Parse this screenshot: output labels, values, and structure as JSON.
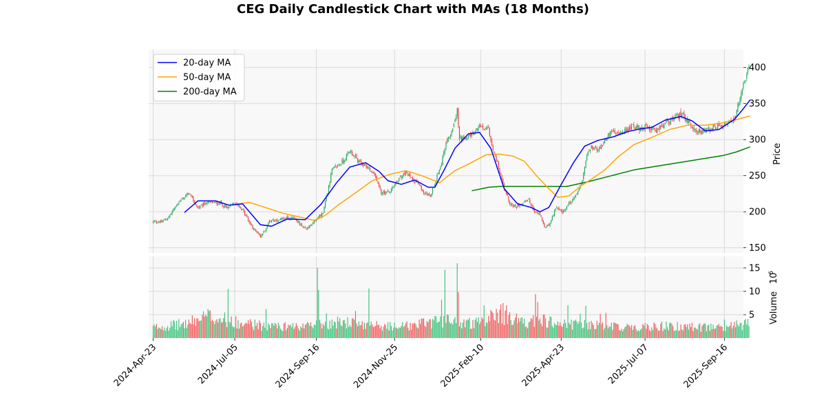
{
  "chart_data": {
    "type": "candlestick",
    "title": "CEG Daily Candlestick Chart with MAs (18 Months)",
    "price_panel": {
      "ylabel": "Price",
      "ylim": [
        143,
        425
      ],
      "yticks": [
        150,
        200,
        250,
        300,
        350,
        400
      ],
      "ytick_labels": [
        "150",
        "200",
        "250",
        "300",
        "350",
        "400"
      ],
      "grid": true
    },
    "volume_panel": {
      "ylabel": "Volume",
      "exponent_label": "6",
      "ylim": [
        0,
        17.5
      ],
      "yticks": [
        5,
        10,
        15
      ],
      "ytick_labels": [
        "5",
        "10",
        "15"
      ],
      "grid": true
    },
    "xaxis": {
      "range_days": [
        -4,
        528
      ],
      "ticks": [
        {
          "day": 0,
          "label": "2024-Apr-23"
        },
        {
          "day": 73,
          "label": "2024-Jul-05"
        },
        {
          "day": 146,
          "label": "2024-Sep-16"
        },
        {
          "day": 216,
          "label": "2024-Nov-25"
        },
        {
          "day": 293,
          "label": "2025-Feb-10"
        },
        {
          "day": 365,
          "label": "2025-Apr-23"
        },
        {
          "day": 440,
          "label": "2025-Jul-07"
        },
        {
          "day": 511,
          "label": "2025-Sep-16"
        }
      ]
    },
    "legend": {
      "position": "top-left",
      "entries": [
        {
          "label": "20-day MA",
          "color": "#0000ff"
        },
        {
          "label": "50-day MA",
          "color": "#ffa500"
        },
        {
          "label": "200-day MA",
          "color": "#008000"
        }
      ]
    },
    "colors": {
      "up": "#26a65b",
      "down": "#e8413e",
      "up_volume": "#3cc37a",
      "down_volume": "#f25c5c"
    },
    "price_path": [
      [
        0,
        186
      ],
      [
        8,
        186
      ],
      [
        14,
        193
      ],
      [
        22,
        212
      ],
      [
        32,
        226
      ],
      [
        40,
        205
      ],
      [
        48,
        213
      ],
      [
        60,
        212
      ],
      [
        66,
        205
      ],
      [
        72,
        213
      ],
      [
        76,
        211
      ],
      [
        82,
        197
      ],
      [
        88,
        180
      ],
      [
        96,
        165
      ],
      [
        104,
        186
      ],
      [
        114,
        190
      ],
      [
        126,
        192
      ],
      [
        132,
        181
      ],
      [
        138,
        176
      ],
      [
        144,
        188
      ],
      [
        152,
        198
      ],
      [
        160,
        258
      ],
      [
        170,
        270
      ],
      [
        176,
        285
      ],
      [
        184,
        268
      ],
      [
        192,
        262
      ],
      [
        200,
        245
      ],
      [
        204,
        226
      ],
      [
        212,
        228
      ],
      [
        220,
        246
      ],
      [
        226,
        254
      ],
      [
        232,
        246
      ],
      [
        236,
        241
      ],
      [
        242,
        227
      ],
      [
        248,
        222
      ],
      [
        254,
        250
      ],
      [
        258,
        268
      ],
      [
        262,
        295
      ],
      [
        268,
        315
      ],
      [
        272,
        341
      ],
      [
        274,
        302
      ],
      [
        280,
        301
      ],
      [
        288,
        312
      ],
      [
        292,
        318
      ],
      [
        300,
        314
      ],
      [
        304,
        286
      ],
      [
        308,
        268
      ],
      [
        314,
        232
      ],
      [
        320,
        209
      ],
      [
        324,
        206
      ],
      [
        330,
        213
      ],
      [
        336,
        216
      ],
      [
        340,
        202
      ],
      [
        346,
        196
      ],
      [
        350,
        178
      ],
      [
        354,
        181
      ],
      [
        360,
        206
      ],
      [
        366,
        198
      ],
      [
        372,
        212
      ],
      [
        378,
        222
      ],
      [
        384,
        244
      ],
      [
        388,
        278
      ],
      [
        392,
        290
      ],
      [
        398,
        284
      ],
      [
        404,
        300
      ],
      [
        410,
        312
      ],
      [
        416,
        307
      ],
      [
        422,
        312
      ],
      [
        428,
        318
      ],
      [
        436,
        315
      ],
      [
        442,
        318
      ],
      [
        450,
        312
      ],
      [
        458,
        322
      ],
      [
        466,
        330
      ],
      [
        472,
        335
      ],
      [
        478,
        326
      ],
      [
        484,
        314
      ],
      [
        490,
        310
      ],
      [
        496,
        312
      ],
      [
        502,
        318
      ],
      [
        508,
        318
      ],
      [
        514,
        323
      ],
      [
        518,
        322
      ],
      [
        522,
        340
      ],
      [
        526,
        366
      ],
      [
        529,
        380
      ],
      [
        531,
        390
      ],
      [
        533,
        406
      ]
    ],
    "volume_path": [
      [
        0,
        2.2
      ],
      [
        30,
        3.0
      ],
      [
        50,
        4.6
      ],
      [
        70,
        3.5
      ],
      [
        100,
        2.5
      ],
      [
        130,
        2.3
      ],
      [
        150,
        2.9
      ],
      [
        170,
        3.3
      ],
      [
        200,
        2.6
      ],
      [
        220,
        2.3
      ],
      [
        260,
        3.6
      ],
      [
        290,
        3.0
      ],
      [
        310,
        4.6
      ],
      [
        330,
        3.4
      ],
      [
        350,
        3.6
      ],
      [
        370,
        3.0
      ],
      [
        400,
        2.7
      ],
      [
        430,
        2.2
      ],
      [
        460,
        2.5
      ],
      [
        490,
        2.2
      ],
      [
        510,
        2.3
      ],
      [
        533,
        3.0
      ]
    ],
    "volume_spikes": [
      [
        67,
        10.5
      ],
      [
        101,
        6.2
      ],
      [
        147,
        15.0
      ],
      [
        148,
        10.3
      ],
      [
        155,
        5.3
      ],
      [
        181,
        5.8
      ],
      [
        193,
        10.6
      ],
      [
        258,
        8.2
      ],
      [
        261,
        14.6
      ],
      [
        272,
        16.0
      ],
      [
        273,
        9.8
      ],
      [
        296,
        7.0
      ],
      [
        302,
        6.0
      ],
      [
        311,
        7.2
      ],
      [
        313,
        7.5
      ],
      [
        316,
        7.0
      ],
      [
        342,
        9.4
      ],
      [
        344,
        7.7
      ],
      [
        371,
        7.0
      ],
      [
        382,
        5.2
      ],
      [
        387,
        6.9
      ],
      [
        400,
        5.2
      ],
      [
        405,
        5.4
      ],
      [
        511,
        4.0
      ]
    ],
    "ma20": [
      [
        28,
        199
      ],
      [
        40,
        215
      ],
      [
        56,
        215
      ],
      [
        68,
        209
      ],
      [
        80,
        211
      ],
      [
        96,
        182
      ],
      [
        106,
        180
      ],
      [
        120,
        190
      ],
      [
        136,
        189
      ],
      [
        150,
        210
      ],
      [
        164,
        240
      ],
      [
        176,
        262
      ],
      [
        190,
        268
      ],
      [
        202,
        256
      ],
      [
        210,
        243
      ],
      [
        222,
        238
      ],
      [
        234,
        244
      ],
      [
        246,
        234
      ],
      [
        252,
        234
      ],
      [
        260,
        257
      ],
      [
        270,
        288
      ],
      [
        282,
        308
      ],
      [
        292,
        310
      ],
      [
        302,
        288
      ],
      [
        314,
        232
      ],
      [
        326,
        211
      ],
      [
        338,
        206
      ],
      [
        346,
        200
      ],
      [
        354,
        206
      ],
      [
        364,
        235
      ],
      [
        376,
        268
      ],
      [
        386,
        291
      ],
      [
        398,
        299
      ],
      [
        412,
        304
      ],
      [
        424,
        311
      ],
      [
        436,
        315
      ],
      [
        446,
        317
      ],
      [
        458,
        327
      ],
      [
        472,
        332
      ],
      [
        482,
        326
      ],
      [
        494,
        312
      ],
      [
        506,
        314
      ],
      [
        520,
        328
      ],
      [
        528,
        343
      ],
      [
        534,
        355
      ]
    ],
    "ma50": [
      [
        72,
        210
      ],
      [
        86,
        213
      ],
      [
        102,
        205
      ],
      [
        116,
        198
      ],
      [
        130,
        193
      ],
      [
        144,
        188
      ],
      [
        154,
        195
      ],
      [
        166,
        210
      ],
      [
        180,
        225
      ],
      [
        196,
        243
      ],
      [
        212,
        252
      ],
      [
        226,
        257
      ],
      [
        242,
        249
      ],
      [
        256,
        240
      ],
      [
        270,
        257
      ],
      [
        282,
        266
      ],
      [
        298,
        279
      ],
      [
        310,
        280
      ],
      [
        322,
        277
      ],
      [
        332,
        270
      ],
      [
        344,
        248
      ],
      [
        354,
        232
      ],
      [
        362,
        220
      ],
      [
        372,
        222
      ],
      [
        382,
        235
      ],
      [
        392,
        245
      ],
      [
        404,
        258
      ],
      [
        416,
        276
      ],
      [
        430,
        293
      ],
      [
        446,
        303
      ],
      [
        462,
        314
      ],
      [
        478,
        320
      ],
      [
        494,
        320
      ],
      [
        508,
        323
      ],
      [
        520,
        327
      ],
      [
        534,
        333
      ]
    ],
    "ma200": [
      [
        285,
        229
      ],
      [
        294,
        232
      ],
      [
        300,
        234
      ],
      [
        310,
        235
      ],
      [
        330,
        235
      ],
      [
        350,
        235
      ],
      [
        370,
        235
      ],
      [
        390,
        242
      ],
      [
        410,
        250
      ],
      [
        430,
        258
      ],
      [
        450,
        263
      ],
      [
        470,
        268
      ],
      [
        490,
        273
      ],
      [
        510,
        278
      ],
      [
        522,
        283
      ],
      [
        534,
        290
      ]
    ]
  }
}
